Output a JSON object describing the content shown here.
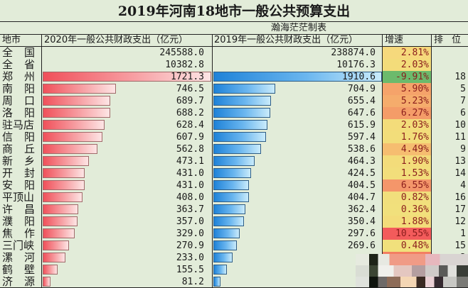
{
  "title": "2019年河南18地市一般公共预算支出",
  "author": "瀚海茫茫制表",
  "headers": {
    "city": "地市",
    "exp2020": "2020年一般公共财政支出（亿元）",
    "exp2019": "2019年一般公共财政支出（亿元）",
    "growth": "增速",
    "rank": "排 位"
  },
  "colors": {
    "background": "#e2ecd9",
    "bar_2020": "#f0505a",
    "bar_2019": "#1e82d8",
    "growth_high": "#f35b5b",
    "growth_mid": "#f5a36a",
    "growth_low": "#f3dc7a",
    "growth_negative": "#6cba6c"
  },
  "rows": [
    {
      "c1": "全",
      "c2": "国",
      "v2020": "245588.0",
      "v2019": "238874.0",
      "growth": "2.81%",
      "rank": "",
      "bar": false,
      "gcolor": "#f6d97c"
    },
    {
      "c1": "全",
      "c2": "省",
      "v2020": "10382.8",
      "v2019": "10176.3",
      "growth": "2.03%",
      "rank": "",
      "bar": false,
      "gcolor": "#f3dc7a"
    },
    {
      "c1": "郑",
      "c2": "州",
      "v2020": "1721.3",
      "v2019": "1910.6",
      "growth": "-9.91%",
      "rank": "18",
      "bar": true,
      "gcolor": "#6cba6c"
    },
    {
      "c1": "南",
      "c2": "阳",
      "v2020": "746.5",
      "v2019": "704.9",
      "growth": "5.90%",
      "rank": "5",
      "bar": true,
      "gcolor": "#f5a36a"
    },
    {
      "c1": "周",
      "c2": "口",
      "v2020": "689.7",
      "v2019": "655.4",
      "growth": "5.23%",
      "rank": "7",
      "bar": true,
      "gcolor": "#f5ac6c"
    },
    {
      "c1": "洛",
      "c2": "阳",
      "v2020": "688.2",
      "v2019": "647.6",
      "growth": "6.27%",
      "rank": "6",
      "bar": true,
      "gcolor": "#f49c68"
    },
    {
      "c1": "驻马店",
      "c2": "",
      "v2020": "628.4",
      "v2019": "615.9",
      "growth": "2.03%",
      "rank": "10",
      "bar": true,
      "gcolor": "#f3dc7a"
    },
    {
      "c1": "信",
      "c2": "阳",
      "v2020": "607.9",
      "v2019": "597.4",
      "growth": "1.76%",
      "rank": "11",
      "bar": true,
      "gcolor": "#f2dd7a"
    },
    {
      "c1": "商",
      "c2": "丘",
      "v2020": "562.8",
      "v2019": "538.6",
      "growth": "4.49%",
      "rank": "9",
      "bar": true,
      "gcolor": "#f6bd70"
    },
    {
      "c1": "新",
      "c2": "乡",
      "v2020": "473.1",
      "v2019": "464.3",
      "growth": "1.90%",
      "rank": "13",
      "bar": true,
      "gcolor": "#f3dc7a"
    },
    {
      "c1": "开",
      "c2": "封",
      "v2020": "431.0",
      "v2019": "424.5",
      "growth": "1.53%",
      "rank": "14",
      "bar": true,
      "gcolor": "#f2de7b"
    },
    {
      "c1": "安",
      "c2": "阳",
      "v2020": "431.0",
      "v2019": "404.5",
      "growth": "6.55%",
      "rank": "4",
      "bar": true,
      "gcolor": "#f4966a"
    },
    {
      "c1": "平顶山",
      "c2": "",
      "v2020": "408.0",
      "v2019": "404.7",
      "growth": "0.82%",
      "rank": "16",
      "bar": true,
      "gcolor": "#f1df7c"
    },
    {
      "c1": "许",
      "c2": "昌",
      "v2020": "363.7",
      "v2019": "362.4",
      "growth": "0.36%",
      "rank": "17",
      "bar": true,
      "gcolor": "#f1e07c"
    },
    {
      "c1": "濮",
      "c2": "阳",
      "v2020": "357.0",
      "v2019": "350.4",
      "growth": "1.88%",
      "rank": "12",
      "bar": true,
      "gcolor": "#f3dc7a"
    },
    {
      "c1": "焦",
      "c2": "作",
      "v2020": "329.0",
      "v2019": "297.6",
      "growth": "10.55%",
      "rank": "1",
      "bar": true,
      "gcolor": "#f35b5b"
    },
    {
      "c1": "三门峡",
      "c2": "",
      "v2020": "270.9",
      "v2019": "269.6",
      "growth": "0.48%",
      "rank": "15",
      "bar": true,
      "gcolor": "#f1e07c"
    },
    {
      "c1": "漯",
      "c2": "河",
      "v2020": "233.0",
      "v2019": "",
      "growth": "",
      "rank": "2",
      "bar": true,
      "gcolor": "#f37e62"
    },
    {
      "c1": "鹤",
      "c2": "壁",
      "v2020": "155.5",
      "v2019": "",
      "growth": "",
      "rank": "",
      "bar": true,
      "gcolor": "#e2ecd9"
    },
    {
      "c1": "济",
      "c2": "源",
      "v2020": "81.2",
      "v2019": "",
      "growth": "",
      "rank": "",
      "bar": true,
      "gcolor": "#e2ecd9"
    }
  ],
  "chart_data": {
    "type": "table",
    "title": "2019年河南18地市一般公共预算支出",
    "subtitle": "瀚海茫茫制表",
    "columns": [
      "地市",
      "2020年一般公共财政支出（亿元）",
      "2019年一般公共财政支出（亿元）",
      "增速",
      "排位"
    ],
    "categories": [
      "全国",
      "全省",
      "郑州",
      "南阳",
      "周口",
      "洛阳",
      "驻马店",
      "信阳",
      "商丘",
      "新乡",
      "开封",
      "安阳",
      "平顶山",
      "许昌",
      "濮阳",
      "焦作",
      "三门峡",
      "漯河",
      "鹤壁",
      "济源"
    ],
    "series": [
      {
        "name": "2020年一般公共财政支出（亿元）",
        "values": [
          245588.0,
          10382.8,
          1721.3,
          746.5,
          689.7,
          688.2,
          628.4,
          607.9,
          562.8,
          473.1,
          431.0,
          431.0,
          408.0,
          363.7,
          357.0,
          329.0,
          270.9,
          233.0,
          155.5,
          81.2
        ]
      },
      {
        "name": "2019年一般公共财政支出（亿元）",
        "values": [
          238874.0,
          10176.3,
          1910.6,
          704.9,
          655.4,
          647.6,
          615.9,
          597.4,
          538.6,
          464.3,
          424.5,
          404.5,
          404.7,
          362.4,
          350.4,
          297.6,
          269.6,
          null,
          null,
          null
        ]
      },
      {
        "name": "增速",
        "values": [
          "2.81%",
          "2.03%",
          "-9.91%",
          "5.90%",
          "5.23%",
          "6.27%",
          "2.03%",
          "1.76%",
          "4.49%",
          "1.90%",
          "1.53%",
          "6.55%",
          "0.82%",
          "0.36%",
          "1.88%",
          "10.55%",
          "0.48%",
          null,
          null,
          null
        ]
      },
      {
        "name": "排位",
        "values": [
          null,
          null,
          18,
          5,
          7,
          6,
          10,
          11,
          9,
          13,
          14,
          4,
          16,
          17,
          12,
          1,
          15,
          2,
          null,
          null
        ]
      }
    ],
    "notes": "Bars are data bars for 18 cities (郑州 to 济源); bottom-right region is pixelated/obscured."
  }
}
